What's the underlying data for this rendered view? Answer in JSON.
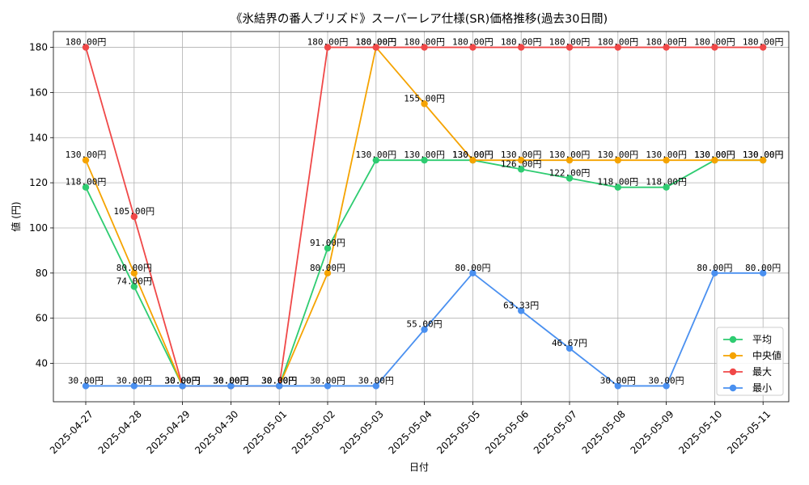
{
  "chart_data": {
    "type": "line",
    "title": "《氷結界の番人ブリズド》スーパーレア仕様(SR)価格推移(過去30日間)",
    "xlabel": "日付",
    "ylabel": "値 (円)",
    "ylim": [
      23,
      187
    ],
    "yticks": [
      40,
      60,
      80,
      100,
      120,
      140,
      160,
      180
    ],
    "grid": true,
    "legend_position": "lower-right",
    "value_suffix": "円",
    "categories": [
      "2025-04-27",
      "2025-04-28",
      "2025-04-29",
      "2025-04-30",
      "2025-05-01",
      "2025-05-02",
      "2025-05-03",
      "2025-05-04",
      "2025-05-05",
      "2025-05-06",
      "2025-05-07",
      "2025-05-08",
      "2025-05-09",
      "2025-05-10",
      "2025-05-11"
    ],
    "series": [
      {
        "name": "平均",
        "color": "#2ecc71",
        "values": [
          118,
          74,
          30,
          30,
          30,
          91,
          130,
          130,
          130,
          126,
          122,
          118,
          118,
          130,
          130
        ]
      },
      {
        "name": "中央値",
        "color": "#f5a300",
        "values": [
          130,
          80,
          30,
          30,
          30,
          80,
          180,
          155,
          130,
          130,
          130,
          130,
          130,
          130,
          130
        ]
      },
      {
        "name": "最大",
        "color": "#f04848",
        "values": [
          180,
          105,
          30,
          30,
          30,
          180,
          180,
          180,
          180,
          180,
          180,
          180,
          180,
          180,
          180
        ]
      },
      {
        "name": "最小",
        "color": "#4a90f0",
        "values": [
          30,
          30,
          30,
          30,
          30,
          30,
          30,
          55,
          80,
          63.33,
          46.67,
          30,
          30,
          80,
          80
        ]
      }
    ]
  }
}
